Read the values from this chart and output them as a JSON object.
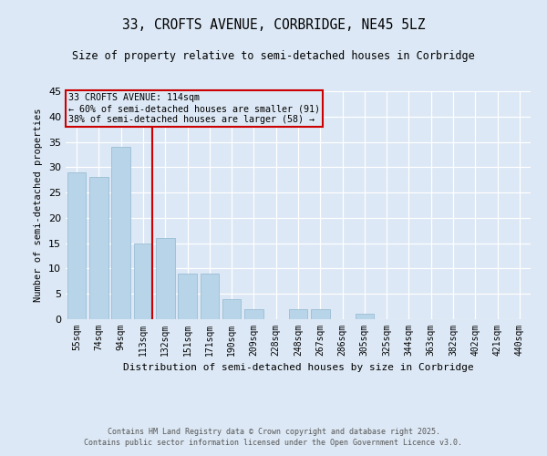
{
  "title1": "33, CROFTS AVENUE, CORBRIDGE, NE45 5LZ",
  "title2": "Size of property relative to semi-detached houses in Corbridge",
  "xlabel": "Distribution of semi-detached houses by size in Corbridge",
  "ylabel": "Number of semi-detached properties",
  "categories": [
    "55sqm",
    "74sqm",
    "94sqm",
    "113sqm",
    "132sqm",
    "151sqm",
    "171sqm",
    "190sqm",
    "209sqm",
    "228sqm",
    "248sqm",
    "267sqm",
    "286sqm",
    "305sqm",
    "325sqm",
    "344sqm",
    "363sqm",
    "382sqm",
    "402sqm",
    "421sqm",
    "440sqm"
  ],
  "values": [
    29,
    28,
    34,
    15,
    16,
    9,
    9,
    4,
    2,
    0,
    2,
    2,
    0,
    1,
    0,
    0,
    0,
    0,
    0,
    0,
    0
  ],
  "bar_color": "#b8d4e8",
  "bar_edge_color": "#9bbdd4",
  "background_color": "#dce8f5",
  "vline_color": "#cc0000",
  "vline_x": 3.43,
  "annotation_title": "33 CROFTS AVENUE: 114sqm",
  "annotation_line1": "← 60% of semi-detached houses are smaller (91)",
  "annotation_line2": "38% of semi-detached houses are larger (58) →",
  "annotation_box_color": "#cc0000",
  "ylim": [
    0,
    45
  ],
  "yticks": [
    0,
    5,
    10,
    15,
    20,
    25,
    30,
    35,
    40,
    45
  ],
  "footer1": "Contains HM Land Registry data © Crown copyright and database right 2025.",
  "footer2": "Contains public sector information licensed under the Open Government Licence v3.0."
}
